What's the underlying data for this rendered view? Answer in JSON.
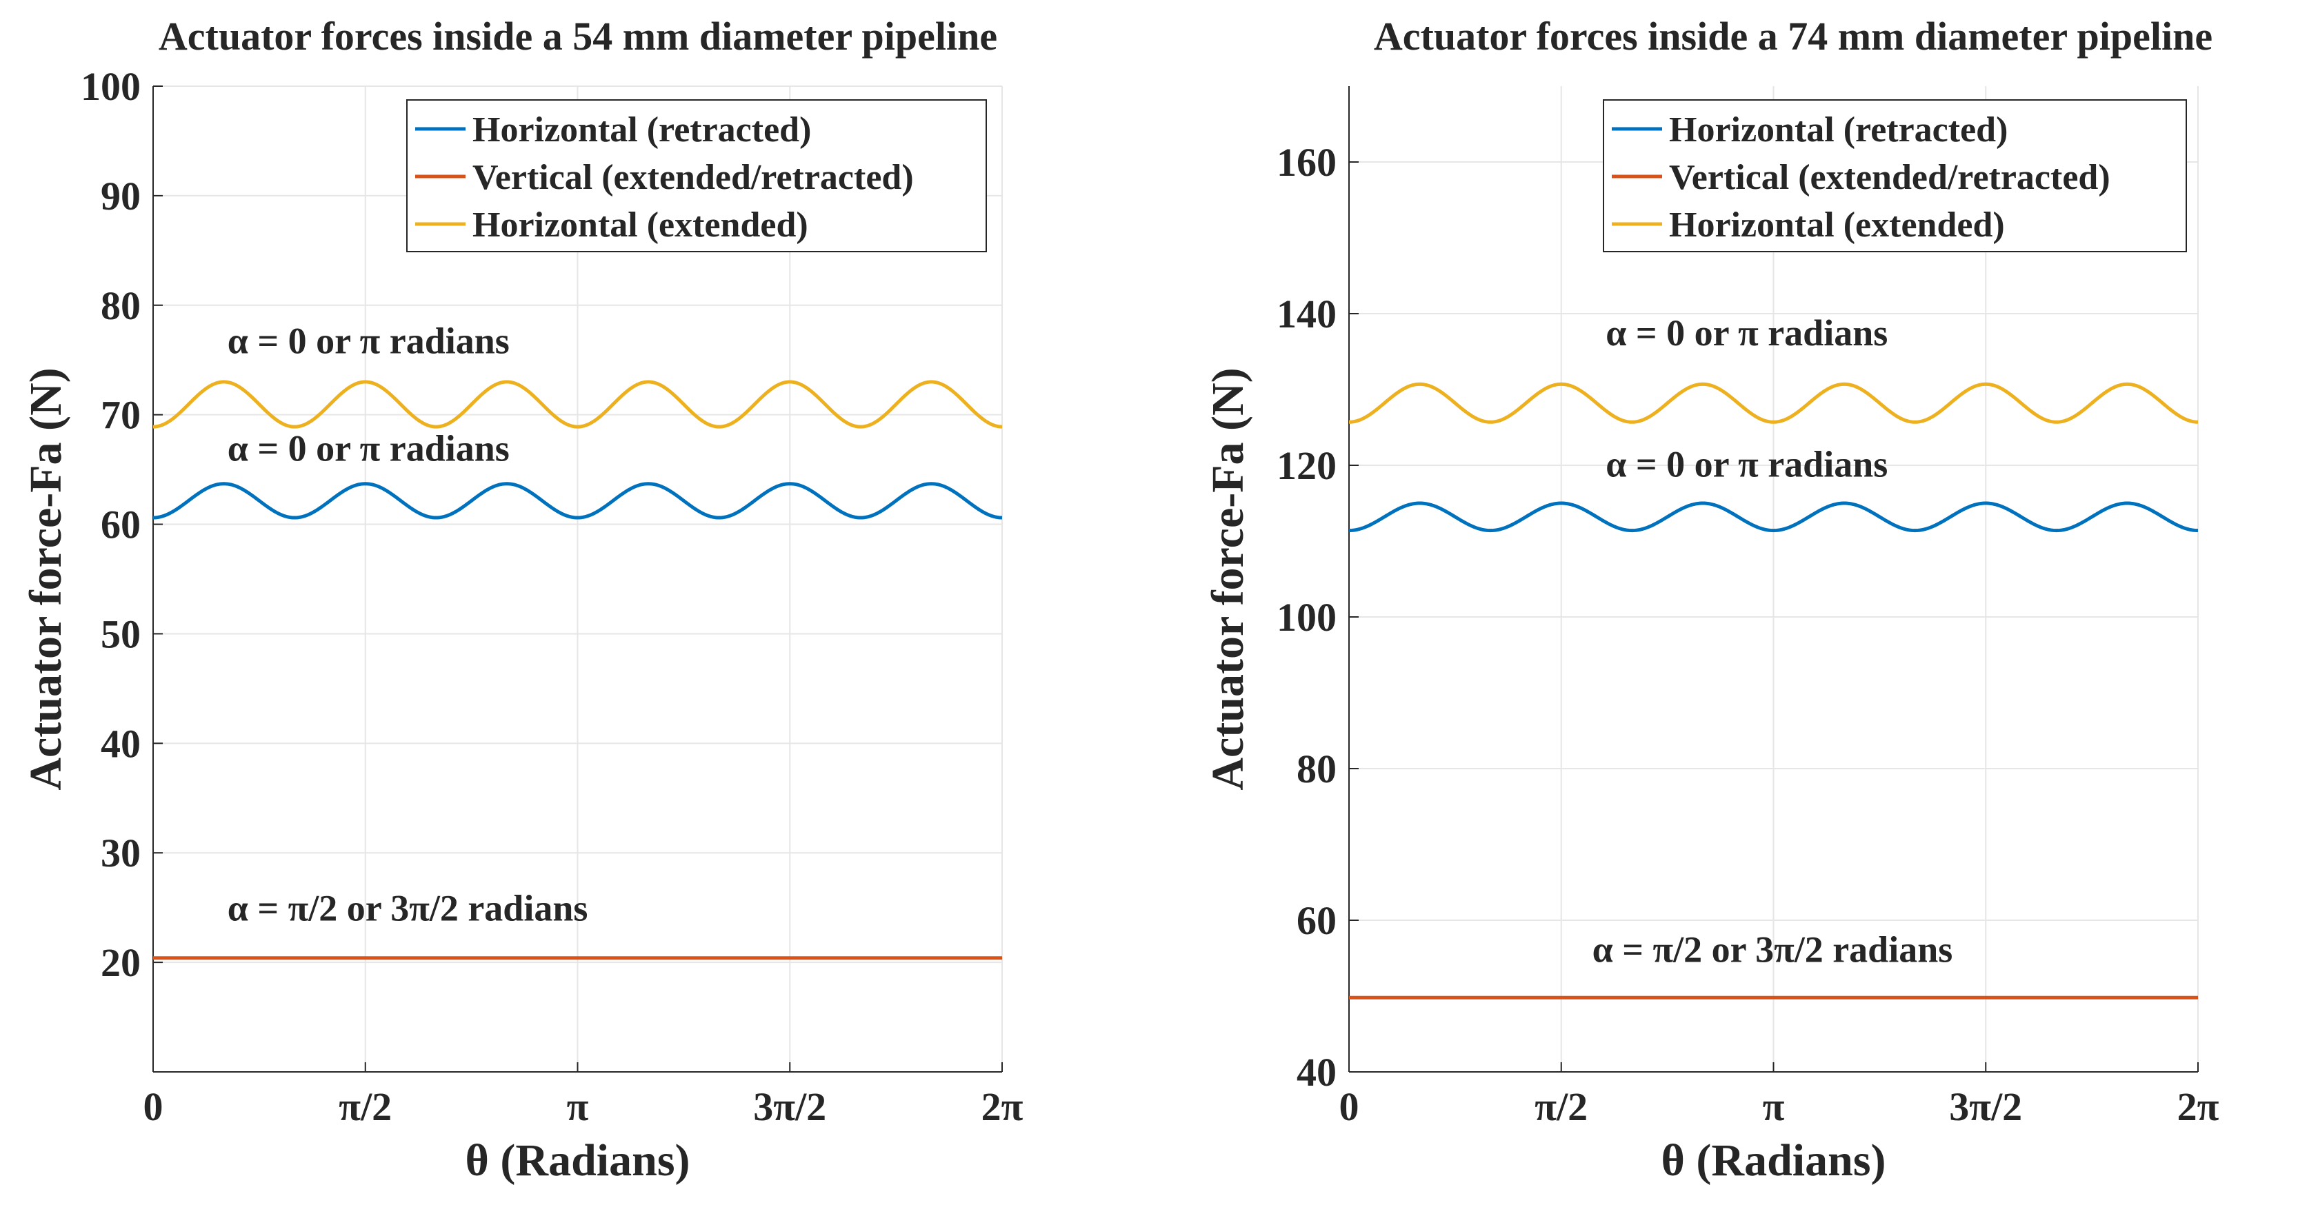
{
  "chart_data": [
    {
      "type": "line",
      "title": "Actuator forces inside a 54 mm diameter pipeline",
      "xlabel": "θ (Radians)",
      "ylabel": "Actuator force-Fa (N)",
      "xlim": [
        0,
        6.2832
      ],
      "ylim": [
        10,
        100
      ],
      "xticks": [
        0,
        1.5708,
        3.1416,
        4.7124,
        6.2832
      ],
      "xtick_labels": [
        "0",
        "π/2",
        "π",
        "3π/2",
        "2π"
      ],
      "yticks": [
        20,
        30,
        40,
        50,
        60,
        70,
        80,
        90,
        100
      ],
      "ytick_labels": [
        "20",
        "30",
        "40",
        "50",
        "60",
        "70",
        "80",
        "90",
        "100"
      ],
      "grid": true,
      "legend_position": "top-right",
      "series": [
        {
          "name": "Horizontal (retracted)",
          "color": "#0072BD",
          "kind": "sin",
          "base": 62.15,
          "amplitude": 1.55,
          "cycles": 6
        },
        {
          "name": "Vertical (extended/retracted)",
          "color": "#D95319",
          "kind": "const",
          "value": 20.4
        },
        {
          "name": "Horizontal (extended)",
          "color": "#EDB120",
          "kind": "sin",
          "base": 70.95,
          "amplitude": 2.05,
          "cycles": 6
        }
      ],
      "annotations": [
        {
          "text": "α = 0 or π radians",
          "x": 0.55,
          "y": 75.6
        },
        {
          "text": "α = 0 or π radians",
          "x": 0.55,
          "y": 65.8
        },
        {
          "text": "α = π/2 or 3π/2 radians",
          "x": 0.55,
          "y": 23.8
        }
      ]
    },
    {
      "type": "line",
      "title": "Actuator forces inside a 74 mm diameter pipeline",
      "xlabel": "θ (Radians)",
      "ylabel": "Actuator force-Fa (N)",
      "xlim": [
        0,
        6.2832
      ],
      "ylim": [
        40,
        170
      ],
      "xticks": [
        0,
        1.5708,
        3.1416,
        4.7124,
        6.2832
      ],
      "xtick_labels": [
        "0",
        "π/2",
        "π",
        "3π/2",
        "2π"
      ],
      "yticks": [
        40,
        60,
        80,
        100,
        120,
        140,
        160
      ],
      "ytick_labels": [
        "40",
        "60",
        "80",
        "100",
        "120",
        "140",
        "160"
      ],
      "grid": true,
      "legend_position": "top-right",
      "series": [
        {
          "name": "Horizontal (retracted)",
          "color": "#0072BD",
          "kind": "sin",
          "base": 113.2,
          "amplitude": 1.8,
          "cycles": 6
        },
        {
          "name": "Vertical (extended/retracted)",
          "color": "#D95319",
          "kind": "const",
          "value": 49.8
        },
        {
          "name": "Horizontal (extended)",
          "color": "#EDB120",
          "kind": "sin",
          "base": 128.2,
          "amplitude": 2.5,
          "cycles": 6
        }
      ],
      "annotations": [
        {
          "text": "α = 0 or π radians",
          "x": 1.9,
          "y": 135.8
        },
        {
          "text": "α = 0 or π radians",
          "x": 1.9,
          "y": 118.5
        },
        {
          "text": "α = π/2 or 3π/2 radians",
          "x": 1.8,
          "y": 54.5
        }
      ]
    }
  ]
}
